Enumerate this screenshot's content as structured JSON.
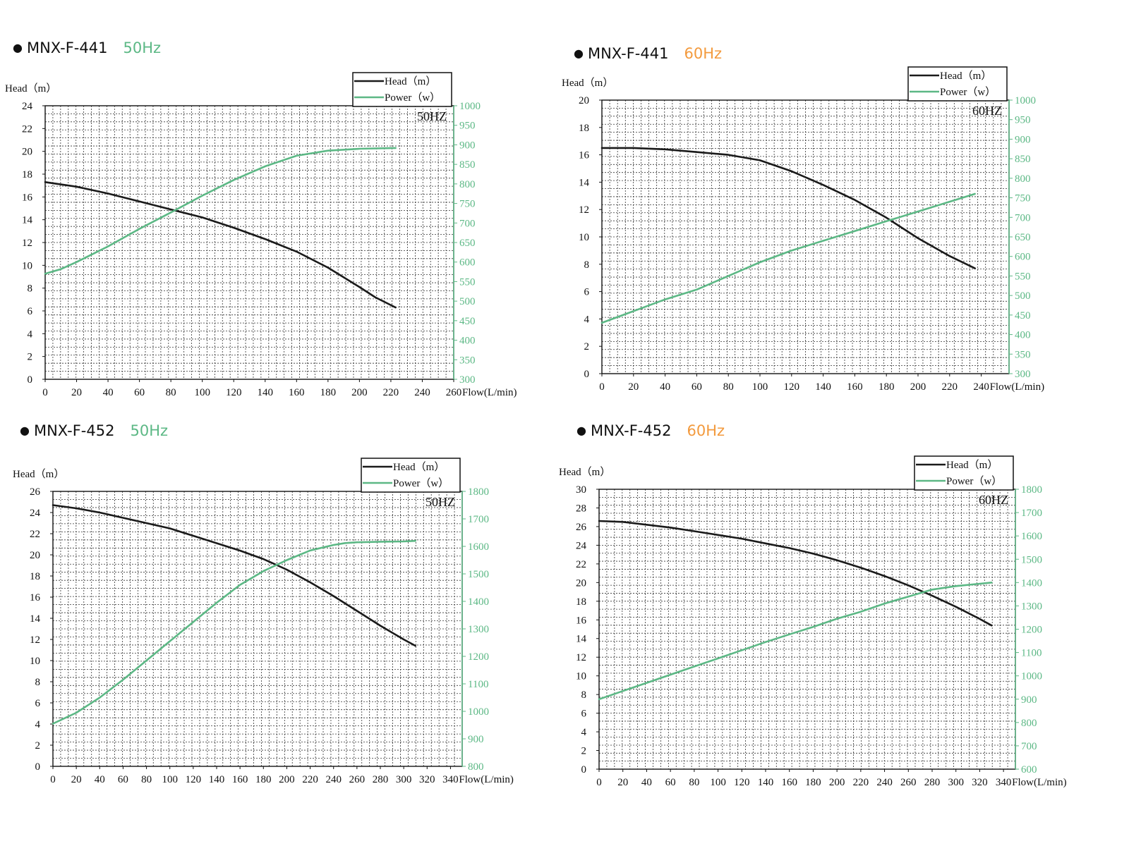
{
  "panels": [
    {
      "model": "MNX-F-441",
      "freq": "50Hz",
      "freq_color": "#5cb885"
    },
    {
      "model": "MNX-F-441",
      "freq": "60Hz",
      "freq_color": "#f39a3d"
    },
    {
      "model": "MNX-F-452",
      "freq": "50Hz",
      "freq_color": "#5cb885"
    },
    {
      "model": "MNX-F-452",
      "freq": "60Hz",
      "freq_color": "#f39a3d"
    }
  ],
  "colors": {
    "head": "#1a1a1a",
    "power": "#5cb885",
    "grid": "#333333"
  },
  "chart_data": [
    {
      "type": "line",
      "ylabel": "Head（m）",
      "xlabel": "Flow(L/min)",
      "annotation": "50HZ",
      "legend": [
        "Head（m）",
        "Power（w）"
      ],
      "legend_position": "top-right",
      "grid": true,
      "xlim": [
        0,
        260
      ],
      "xticks": [
        0,
        20,
        40,
        60,
        80,
        100,
        120,
        140,
        160,
        180,
        200,
        220,
        240,
        260
      ],
      "ylim": [
        0,
        24
      ],
      "yticks": [
        0,
        2,
        4,
        6,
        8,
        10,
        12,
        14,
        16,
        18,
        20,
        22,
        24
      ],
      "y2lim": [
        300,
        1000
      ],
      "y2ticks": [
        300,
        350,
        400,
        450,
        500,
        550,
        600,
        650,
        700,
        750,
        800,
        850,
        900,
        950,
        1000
      ],
      "series": [
        {
          "name": "Head（m）",
          "axis": "left",
          "x": [
            0,
            20,
            40,
            60,
            80,
            100,
            120,
            140,
            160,
            180,
            200,
            210,
            223
          ],
          "y": [
            17.3,
            16.9,
            16.3,
            15.6,
            14.9,
            14.2,
            13.3,
            12.3,
            11.2,
            9.8,
            8.1,
            7.2,
            6.3
          ]
        },
        {
          "name": "Power（w）",
          "axis": "right",
          "x": [
            0,
            10,
            20,
            40,
            60,
            80,
            100,
            120,
            140,
            160,
            180,
            200,
            223
          ],
          "y": [
            570,
            582,
            600,
            640,
            685,
            727,
            770,
            810,
            845,
            872,
            885,
            890,
            892
          ]
        }
      ]
    },
    {
      "type": "line",
      "ylabel": "Head（m）",
      "xlabel": "Flow(L/min)",
      "annotation": "60HZ",
      "legend": [
        "Head（m）",
        "Power（w）"
      ],
      "legend_position": "top-right",
      "grid": true,
      "xlim": [
        0,
        250
      ],
      "xticks": [
        0,
        20,
        40,
        60,
        80,
        100,
        120,
        140,
        160,
        180,
        200,
        220,
        240
      ],
      "ylim": [
        0,
        20
      ],
      "yticks": [
        0,
        2,
        4,
        6,
        8,
        10,
        12,
        14,
        16,
        18,
        20
      ],
      "y2lim": [
        300,
        1000
      ],
      "y2ticks": [
        300,
        350,
        400,
        450,
        500,
        550,
        600,
        650,
        700,
        750,
        800,
        850,
        900,
        950,
        1000
      ],
      "series": [
        {
          "name": "Head（m）",
          "axis": "left",
          "x": [
            0,
            20,
            40,
            60,
            80,
            100,
            120,
            140,
            160,
            180,
            200,
            220,
            236
          ],
          "y": [
            16.5,
            16.5,
            16.4,
            16.2,
            16.0,
            15.6,
            14.8,
            13.8,
            12.7,
            11.4,
            9.9,
            8.6,
            7.7
          ]
        },
        {
          "name": "Power（w）",
          "axis": "right",
          "x": [
            0,
            20,
            40,
            60,
            80,
            100,
            120,
            140,
            160,
            180,
            200,
            220,
            236
          ],
          "y": [
            430,
            460,
            490,
            515,
            550,
            585,
            615,
            640,
            665,
            690,
            715,
            740,
            760
          ]
        }
      ]
    },
    {
      "type": "line",
      "ylabel": "Head（m）",
      "xlabel": "Flow(L/min)",
      "annotation": "50HZ",
      "legend": [
        "Head（m）",
        "Power（w）"
      ],
      "legend_position": "top-right",
      "grid": true,
      "xlim": [
        0,
        350
      ],
      "xticks": [
        0,
        20,
        40,
        60,
        80,
        100,
        120,
        140,
        160,
        180,
        200,
        220,
        240,
        260,
        280,
        300,
        320,
        340
      ],
      "ylim": [
        0,
        26
      ],
      "yticks": [
        0,
        2,
        4,
        6,
        8,
        10,
        12,
        14,
        16,
        18,
        20,
        22,
        24,
        26
      ],
      "y2lim": [
        800,
        1800
      ],
      "y2ticks": [
        800,
        900,
        1000,
        1100,
        1200,
        1300,
        1400,
        1500,
        1600,
        1700,
        1800
      ],
      "series": [
        {
          "name": "Head（m）",
          "axis": "left",
          "x": [
            0,
            20,
            40,
            60,
            80,
            100,
            120,
            140,
            160,
            180,
            200,
            220,
            240,
            260,
            280,
            300,
            310
          ],
          "y": [
            24.7,
            24.4,
            24.0,
            23.5,
            23.0,
            22.5,
            21.8,
            21.1,
            20.4,
            19.6,
            18.6,
            17.4,
            16.1,
            14.7,
            13.3,
            12.0,
            11.4
          ]
        },
        {
          "name": "Power（w）",
          "axis": "right",
          "x": [
            0,
            20,
            40,
            60,
            80,
            100,
            120,
            140,
            160,
            180,
            200,
            220,
            240,
            250,
            260,
            280,
            300,
            310
          ],
          "y": [
            955,
            995,
            1050,
            1115,
            1185,
            1255,
            1325,
            1395,
            1460,
            1510,
            1550,
            1585,
            1605,
            1612,
            1615,
            1617,
            1618,
            1620
          ]
        }
      ]
    },
    {
      "type": "line",
      "ylabel": "Head（m）",
      "xlabel": "Flow(L/min)",
      "annotation": "60HZ",
      "legend": [
        "Head（m）",
        "Power（w）"
      ],
      "legend_position": "top-right",
      "grid": true,
      "xlim": [
        0,
        350
      ],
      "xticks": [
        0,
        20,
        40,
        60,
        80,
        100,
        120,
        140,
        160,
        180,
        200,
        220,
        240,
        260,
        280,
        300,
        320,
        340
      ],
      "ylim": [
        0,
        30
      ],
      "yticks": [
        0,
        2,
        4,
        6,
        8,
        10,
        12,
        14,
        16,
        18,
        20,
        22,
        24,
        26,
        28,
        30
      ],
      "y2lim": [
        600,
        1800
      ],
      "y2ticks": [
        600,
        700,
        800,
        900,
        1000,
        1100,
        1200,
        1300,
        1400,
        1500,
        1600,
        1700,
        1800
      ],
      "series": [
        {
          "name": "Head（m）",
          "axis": "left",
          "x": [
            0,
            20,
            40,
            60,
            80,
            100,
            120,
            140,
            160,
            180,
            200,
            220,
            240,
            260,
            280,
            300,
            320,
            330
          ],
          "y": [
            26.6,
            26.5,
            26.2,
            25.9,
            25.5,
            25.1,
            24.7,
            24.2,
            23.7,
            23.1,
            22.4,
            21.6,
            20.7,
            19.7,
            18.6,
            17.4,
            16.1,
            15.4
          ]
        },
        {
          "name": "Power（w）",
          "axis": "right",
          "x": [
            0,
            20,
            40,
            60,
            80,
            100,
            120,
            140,
            160,
            180,
            200,
            220,
            240,
            260,
            280,
            300,
            320,
            330
          ],
          "y": [
            900,
            935,
            970,
            1005,
            1040,
            1075,
            1110,
            1145,
            1178,
            1210,
            1245,
            1275,
            1310,
            1340,
            1370,
            1385,
            1395,
            1400
          ]
        }
      ]
    }
  ]
}
